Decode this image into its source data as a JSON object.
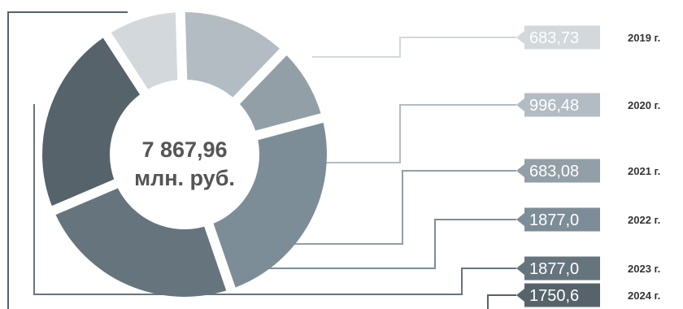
{
  "chart_data": {
    "type": "pie",
    "variant": "donut",
    "total_label": "7 867,96",
    "unit_label": "млн. руб.",
    "categories": [
      "2019 г.",
      "2020 г.",
      "2021 г.",
      "2022 г.",
      "2023 г.",
      "2024 г."
    ],
    "series": [
      {
        "values": [
          683.73,
          996.48,
          683.08,
          1877.0,
          1877.0,
          1750.6
        ],
        "labels": [
          "683,73",
          "996,48",
          "683,08",
          "1877,0",
          "1877,0",
          "1750,6"
        ]
      }
    ],
    "colors": [
      "#d2d8dc",
      "#b3bcc2",
      "#939fa6",
      "#7d8d97",
      "#66747d",
      "#56636b"
    ],
    "legend_placement": "right"
  }
}
